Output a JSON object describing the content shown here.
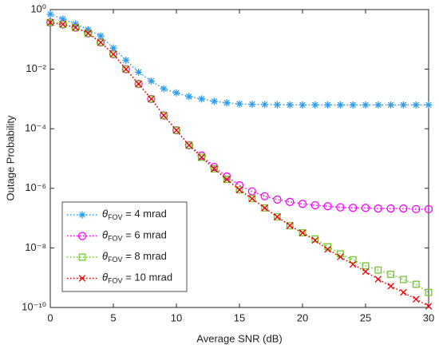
{
  "chart_data": {
    "type": "line",
    "xlabel": "Average SNR (dB)",
    "ylabel": "Outage Probability",
    "x": [
      0,
      1,
      2,
      3,
      4,
      5,
      6,
      7,
      8,
      9,
      10,
      11,
      12,
      13,
      14,
      15,
      16,
      17,
      18,
      19,
      20,
      21,
      22,
      23,
      24,
      25,
      26,
      27,
      28,
      29,
      30
    ],
    "xlim": [
      0,
      30
    ],
    "xticks": [
      0,
      5,
      10,
      15,
      20,
      25,
      30
    ],
    "ylim": [
      1e-10,
      1
    ],
    "yscale": "log",
    "yticks": [
      {
        "value": 1,
        "label": "10⁰"
      },
      {
        "value": 0.01,
        "label": "10⁻²"
      },
      {
        "value": 0.0001,
        "label": "10⁻⁴"
      },
      {
        "value": 1e-06,
        "label": "10⁻⁶"
      },
      {
        "value": 1e-08,
        "label": "10⁻⁸"
      },
      {
        "value": 1e-10,
        "label": "10⁻¹⁰"
      }
    ],
    "legend": "lower left",
    "series": [
      {
        "name": "θFOV = 4 mrad",
        "color": "#2b9cf2",
        "marker": "asterisk",
        "values": [
          0.7,
          0.48,
          0.33,
          0.21,
          0.13,
          0.051,
          0.02,
          0.0079,
          0.004,
          0.0022,
          0.0016,
          0.0012,
          0.001,
          0.00083,
          0.00074,
          0.00068,
          0.00066,
          0.00065,
          0.00064,
          0.00063,
          0.00063,
          0.00063,
          0.00063,
          0.00063,
          0.00063,
          0.00063,
          0.00063,
          0.00063,
          0.00063,
          0.00063,
          0.00063
        ]
      },
      {
        "name": "θFOV = 6 mrad",
        "color": "#ff00ff",
        "marker": "circle",
        "values": [
          0.37,
          0.32,
          0.25,
          0.16,
          0.079,
          0.032,
          0.01,
          0.0032,
          0.001,
          0.00028,
          8.9e-05,
          2.8e-05,
          1.26e-05,
          5.2e-06,
          2.5e-06,
          1.26e-06,
          7.9e-07,
          5.4e-07,
          4.2e-07,
          3.5e-07,
          3e-07,
          2.7e-07,
          2.5e-07,
          2.3e-07,
          2.2e-07,
          2.2e-07,
          2.1e-07,
          2.1e-07,
          2.1e-07,
          2e-07,
          2e-07
        ]
      },
      {
        "name": "θFOV = 8 mrad",
        "color": "#6fcb2d",
        "marker": "square",
        "values": [
          0.37,
          0.32,
          0.25,
          0.16,
          0.079,
          0.032,
          0.01,
          0.0032,
          0.001,
          0.00028,
          8.9e-05,
          2.8e-05,
          1.1e-05,
          4.5e-06,
          2e-06,
          8.9e-07,
          4.5e-07,
          2.2e-07,
          1.1e-07,
          5.6e-08,
          3.2e-08,
          2e-08,
          1.1e-08,
          6.3e-09,
          4e-09,
          2.5e-09,
          1.8e-09,
          1.3e-09,
          8.7e-10,
          6e-10,
          3.2e-10
        ]
      },
      {
        "name": "θFOV = 10 mrad",
        "color": "#e60000",
        "marker": "x",
        "values": [
          0.37,
          0.32,
          0.25,
          0.16,
          0.079,
          0.032,
          0.01,
          0.0032,
          0.001,
          0.00028,
          8.9e-05,
          2.8e-05,
          1.1e-05,
          4.5e-06,
          2e-06,
          8.9e-07,
          4.5e-07,
          2.2e-07,
          1.1e-07,
          5.6e-08,
          3.2e-08,
          1.8e-08,
          8.9e-09,
          5e-09,
          2.8e-09,
          1.6e-09,
          8.9e-10,
          5.2e-10,
          3.2e-10,
          1.9e-10,
          1.1e-10
        ]
      }
    ]
  }
}
